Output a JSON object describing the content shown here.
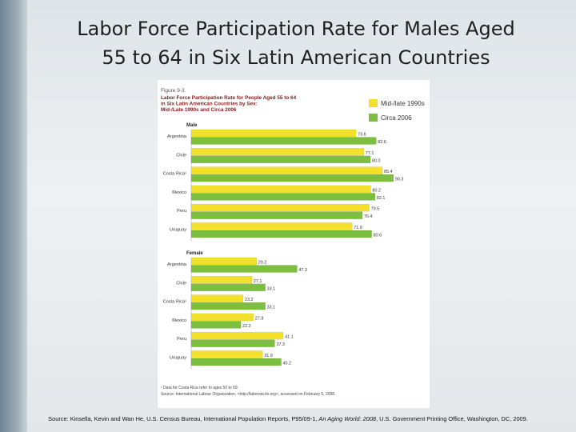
{
  "slide": {
    "title_line1": "Labor Force Participation Rate for Males Aged",
    "title_line2": "55 to 64 in Six Latin American Countries",
    "source_prefix": "Source: Kinsella, Kevin and Wan He, U.S. Census Bureau, International Population Reports, P95/09-1, ",
    "source_title": "An Aging World: 2008",
    "source_suffix": ", U.S. Government Printing Office, Washington, DC, 2009."
  },
  "colors": {
    "series_1990s": "#f2e02a",
    "series_2006": "#7cbf3f",
    "figure_title": "#8b1a1a"
  },
  "chart_data": {
    "type": "bar",
    "orientation": "horizontal",
    "figure_label": "Figure 9-3.",
    "title_lines": [
      "Labor Force Participation Rate for People Aged 55 to 64",
      "in Six Latin American Countries by Sex:",
      "Mid-/Late 1990s and Circa 2006"
    ],
    "legend": [
      "Mid-/late 1990s",
      "Circa 2006"
    ],
    "xlim": [
      0,
      100
    ],
    "panels": [
      {
        "label": "Male",
        "categories": [
          "Argentina",
          "Chile",
          "Costa Rica¹",
          "Mexico",
          "Peru",
          "Uruguay"
        ],
        "series": [
          {
            "name": "Mid-/late 1990s",
            "values": [
              73.6,
              77.1,
              85.4,
              80.2,
              79.5,
              71.9
            ]
          },
          {
            "name": "Circa 2006",
            "values": [
              82.6,
              80.0,
              90.3,
              82.1,
              76.4,
              80.6
            ]
          }
        ]
      },
      {
        "label": "Female",
        "categories": [
          "Argentina",
          "Chile",
          "Costa Rica¹",
          "Mexico",
          "Peru",
          "Uruguay"
        ],
        "series": [
          {
            "name": "Mid-/late 1990s",
            "values": [
              29.2,
              27.1,
              23.2,
              27.8,
              41.1,
              31.9
            ]
          },
          {
            "name": "Circa 2006",
            "values": [
              47.3,
              33.1,
              33.1,
              22.2,
              37.3,
              40.2
            ]
          }
        ]
      }
    ],
    "footnote": "¹ Data for Costa Rica refer to ages 50 to 59.",
    "source_note": "Source: International Labour Organization, <http://laborsta.ilo.org>, accessed on February 5, 2008."
  }
}
